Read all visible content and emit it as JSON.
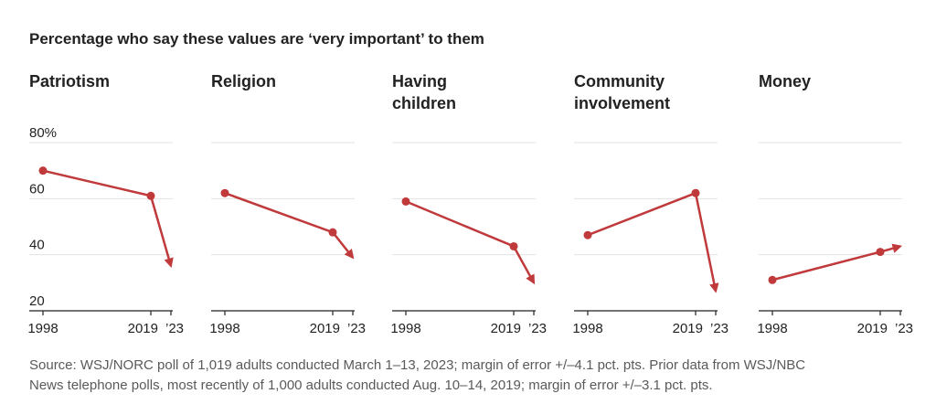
{
  "headline": "Percentage who say these values are ‘very important’ to them",
  "chart_data": [
    {
      "type": "line",
      "title": "Patriotism",
      "x": [
        "1998",
        "2019",
        "2023"
      ],
      "values": [
        70,
        61,
        36
      ],
      "ylim": [
        20,
        80
      ],
      "yticks": [
        "80%",
        "60",
        "40",
        "20"
      ],
      "xticks": [
        "1998",
        "2019",
        "’23"
      ],
      "color": "#c0393b"
    },
    {
      "type": "line",
      "title": "Religion",
      "x": [
        "1998",
        "2019",
        "2023"
      ],
      "values": [
        62,
        48,
        39
      ],
      "ylim": [
        20,
        80
      ],
      "yticks": [],
      "xticks": [
        "1998",
        "2019",
        "’23"
      ],
      "color": "#c0393b"
    },
    {
      "type": "line",
      "title": "Having children",
      "x": [
        "1998",
        "2019",
        "2023"
      ],
      "values": [
        59,
        43,
        30
      ],
      "ylim": [
        20,
        80
      ],
      "yticks": [],
      "xticks": [
        "1998",
        "2019",
        "’23"
      ],
      "color": "#c0393b"
    },
    {
      "type": "line",
      "title": "Community involvement",
      "x": [
        "1998",
        "2019",
        "2023"
      ],
      "values": [
        47,
        62,
        27
      ],
      "ylim": [
        20,
        80
      ],
      "yticks": [],
      "xticks": [
        "1998",
        "2019",
        "’23"
      ],
      "color": "#c0393b"
    },
    {
      "type": "line",
      "title": "Money",
      "x": [
        "1998",
        "2019",
        "2023"
      ],
      "values": [
        31,
        41,
        43
      ],
      "ylim": [
        20,
        80
      ],
      "yticks": [],
      "xticks": [
        "1998",
        "2019",
        "’23"
      ],
      "color": "#c0393b"
    }
  ],
  "source": {
    "line1": "Source: WSJ/NORC poll of 1,019 adults conducted March 1–13, 2023; margin of error +/–4.1 pct. pts. Prior data from WSJ/NBC",
    "line2": "News telephone polls, most recently of 1,000 adults conducted Aug. 10–14, 2019; margin of error +/–3.1 pct. pts."
  }
}
